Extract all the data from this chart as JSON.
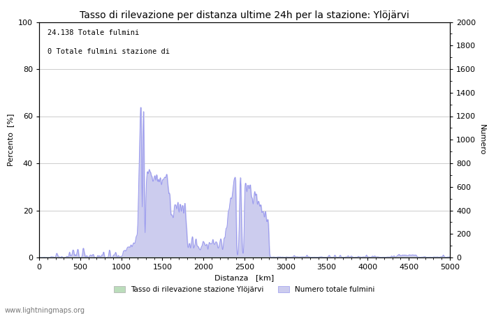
{
  "title": "Tasso di rilevazione per distanza ultime 24h per la stazione: Ylöjärvi",
  "xlabel": "Distanza   [km]",
  "ylabel_left": "Percento  [%]",
  "ylabel_right": "Numero",
  "annotation_line1": "24.138 Totale fulmini",
  "annotation_line2": "0 Totale fulmini stazione di",
  "legend_green": "Tasso di rilevazione stazione Ylöjärvi",
  "legend_blue": "Numero totale fulmini",
  "watermark": "www.lightningmaps.org",
  "xlim": [
    0,
    5000
  ],
  "ylim_left": [
    0,
    100
  ],
  "ylim_right": [
    0,
    2000
  ],
  "xticks": [
    0,
    500,
    1000,
    1500,
    2000,
    2500,
    3000,
    3500,
    4000,
    4500,
    5000
  ],
  "yticks_left": [
    0,
    20,
    40,
    60,
    80,
    100
  ],
  "yticks_right": [
    0,
    200,
    400,
    600,
    800,
    1000,
    1200,
    1400,
    1600,
    1800,
    2000
  ],
  "line_color": "#9999ee",
  "fill_blue_color": "#ccccee",
  "fill_green_color": "#bbddbb",
  "background_color": "#ffffff",
  "grid_color": "#cccccc",
  "title_fontsize": 10,
  "axis_fontsize": 8,
  "tick_fontsize": 8
}
